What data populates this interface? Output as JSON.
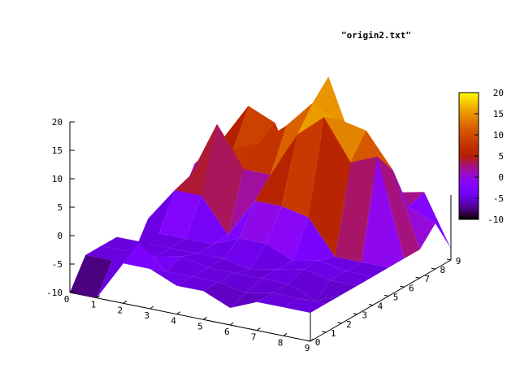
{
  "chart_data": {
    "type": "surface",
    "title": "\"origin2.txt\"",
    "x": [
      0,
      1,
      2,
      3,
      4,
      5,
      6,
      7,
      8,
      9
    ],
    "y": [
      0,
      1,
      2,
      3,
      4,
      5,
      6,
      7,
      8,
      9
    ],
    "z_rows_by_y": [
      [
        -10,
        -10,
        -3,
        -3,
        -5,
        -5,
        -7,
        -5,
        -5,
        -5
      ],
      [
        -5,
        -5,
        -1,
        -5,
        -5,
        -5,
        -6,
        -5,
        -5,
        -5
      ],
      [
        -5,
        -5,
        -5,
        -4,
        -5,
        -5,
        -5,
        -5,
        -7,
        -5
      ],
      [
        -5,
        -5,
        -5,
        -5,
        -5,
        -6,
        -5,
        -4,
        -5,
        -5
      ],
      [
        -10,
        -5,
        -5,
        -5,
        -3,
        -3,
        -5,
        -4,
        -5,
        -5
      ],
      [
        -5,
        1,
        1,
        -5,
        2,
        2,
        1,
        -5,
        -5,
        -5
      ],
      [
        -5,
        2,
        12,
        5,
        5,
        13,
        17,
        10,
        12,
        -5
      ],
      [
        -5,
        -3,
        6,
        8,
        12,
        17,
        15,
        14,
        8,
        -5
      ],
      [
        0,
        5,
        12,
        10,
        0,
        20,
        8,
        8,
        0,
        -2
      ],
      [
        -5,
        -3,
        0,
        2,
        10,
        -2,
        0,
        0,
        1,
        -8
      ]
    ],
    "xlim": [
      0,
      9
    ],
    "ylim": [
      0,
      9
    ],
    "zlim": [
      -10,
      20
    ],
    "x_ticks": [
      "0",
      "1",
      "2",
      "3",
      "4",
      "5",
      "6",
      "7",
      "8",
      "9"
    ],
    "y_ticks": [
      "0",
      "1",
      "2",
      "3",
      "4",
      "5",
      "6",
      "7",
      "8",
      "9"
    ],
    "z_ticks": [
      "20",
      "15",
      "10",
      "5",
      "0",
      "-5",
      "-10"
    ],
    "colorbar": {
      "ticks": [
        "20",
        "15",
        "10",
        "5",
        "0",
        "-5",
        "-10"
      ],
      "range": [
        -10,
        20
      ],
      "palette": "gnuplot pm3d (black-purple-red-orange-yellow)"
    },
    "colors": {
      "axis": "#000000",
      "background": "#ffffff"
    }
  }
}
